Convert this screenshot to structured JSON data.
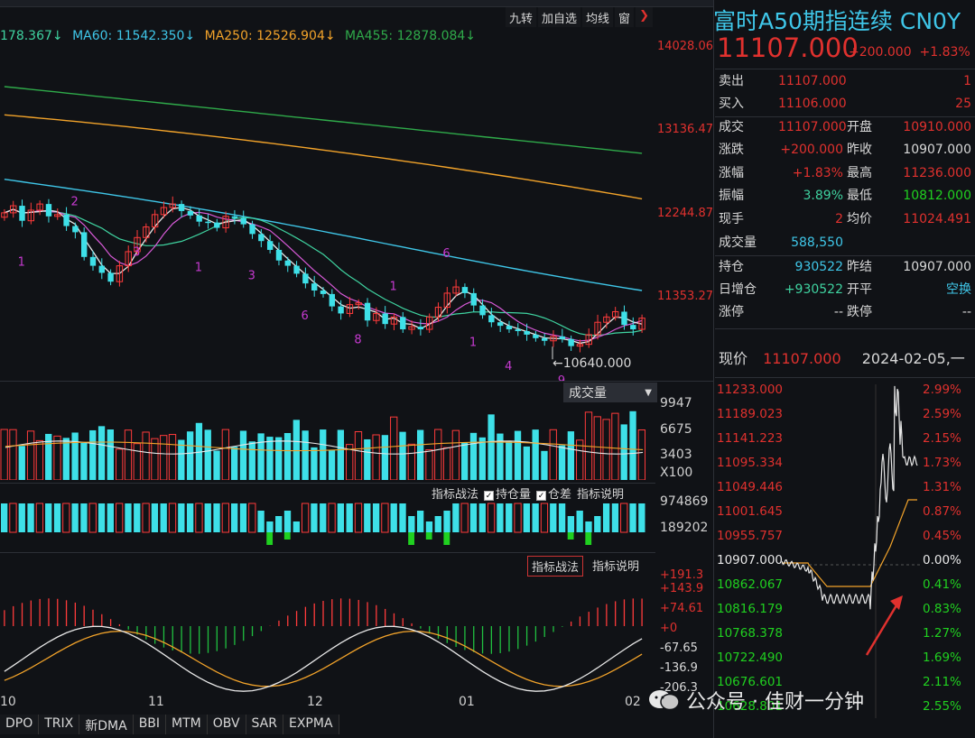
{
  "toolbar": {
    "btn1": "九转",
    "btn2": "加自选",
    "btn3": "均线",
    "btn4": "窗",
    "btn5": "❯"
  },
  "ma_legend": {
    "ma_a": "178.367↓",
    "ma60": "MA60: 11542.350↓",
    "ma250": "MA250: 12526.904↓",
    "ma455": "MA455: 12878.084↓",
    "colors": {
      "ma_a": "#3fd3a0",
      "ma60": "#3fc6e8",
      "ma250": "#f2a32a",
      "ma455": "#2faa4a"
    }
  },
  "price_axis": [
    "14028.06",
    "13136.47",
    "12244.87",
    "11353.27"
  ],
  "low_marker": "←10640.000",
  "volume": {
    "label": "成交量",
    "dropdown": "▼",
    "axis": [
      "9947",
      "6675",
      "3403",
      "X100"
    ]
  },
  "position": {
    "btn_tactic": "指标战法",
    "chk1": "持仓量",
    "chk2": "仓差",
    "btn_help": "指标说明",
    "axis": [
      "974869",
      "189202"
    ]
  },
  "macd": {
    "btn_tactic": "指标战法",
    "btn_help": "指标说明",
    "axis": [
      "+191.3",
      "+143.9",
      "+74.61",
      "+0",
      "-67.65",
      "-136.9",
      "-206.3"
    ]
  },
  "x_labels": [
    "10",
    "11",
    "12",
    "01",
    "02"
  ],
  "bottom_tabs": [
    "DPO",
    "TRIX",
    "新DMA",
    "BBI",
    "MTM",
    "OBV",
    "SAR",
    "EXPMA"
  ],
  "quote": {
    "title": "富时A50期指连续 CN0Y",
    "price": "11107.000",
    "change": "+200.000",
    "change_pct": "+1.83%",
    "rows": [
      {
        "l1": "卖出",
        "v1": "11107.000",
        "l2": "",
        "v2": "1"
      },
      {
        "l1": "买入",
        "v1": "11106.000",
        "l2": "",
        "v2": "25"
      },
      {
        "l1": "成交",
        "v1": "11107.000",
        "l2": "开盘",
        "v2": "10910.000"
      },
      {
        "l1": "涨跌",
        "v1": "+200.000",
        "l2": "昨收",
        "v2": "10907.000"
      },
      {
        "l1": "涨幅",
        "v1": "+1.83%",
        "l2": "最高",
        "v2": "11236.000"
      },
      {
        "l1": "振幅",
        "v1": "3.89%",
        "l2": "最低",
        "v2": "10812.000"
      },
      {
        "l1": "现手",
        "v1": "2",
        "l2": "均价",
        "v2": "11024.491"
      },
      {
        "l1": "成交量",
        "v1": "588,550",
        "l2": "",
        "v2": ""
      },
      {
        "l1": "持仓",
        "v1": "930522",
        "l2": "昨结",
        "v2": "10907.000"
      },
      {
        "l1": "日增仓",
        "v1": "+930522",
        "l2": "开平",
        "v2": "空换"
      },
      {
        "l1": "涨停",
        "v1": "--",
        "l2": "跌停",
        "v2": "--"
      }
    ],
    "cur_label": "现价",
    "cur_price": "11107.000",
    "cur_date": "2024-02-05,一"
  },
  "intraday": {
    "left_axis": [
      "11233.000",
      "11189.023",
      "11141.223",
      "11095.334",
      "11049.446",
      "11001.645",
      "10955.757",
      "10907.000",
      "10862.067",
      "10816.179",
      "10768.378",
      "10722.490",
      "10676.601",
      "10628.801"
    ],
    "right_axis": [
      "2.99%",
      "2.59%",
      "2.15%",
      "1.73%",
      "1.31%",
      "0.87%",
      "0.45%",
      "0.00%",
      "0.41%",
      "0.83%",
      "1.27%",
      "1.69%",
      "2.11%",
      "2.55%"
    ]
  },
  "watermark": "公众号 · 佳财一分钟",
  "chart_data": {
    "type": "candlestick",
    "title": "富时A50期指连续 CN0Y",
    "x_labels": [
      "10",
      "11",
      "12",
      "01",
      "02"
    ],
    "y_ticks": [
      14028.06,
      13136.47,
      12244.87,
      11353.27
    ],
    "ylim": [
      10500,
      14200
    ],
    "low_point": 10640,
    "series": [
      {
        "name": "MA60",
        "last": 11542.35
      },
      {
        "name": "MA250",
        "last": 12526.904
      },
      {
        "name": "MA455",
        "last": 12878.084
      }
    ],
    "closes": [
      12300,
      12380,
      12210,
      12330,
      12400,
      12260,
      12280,
      12150,
      12080,
      11800,
      11700,
      11620,
      11520,
      11700,
      11860,
      12020,
      12140,
      12280,
      12360,
      12400,
      12320,
      12270,
      12200,
      12190,
      12130,
      12260,
      12240,
      12170,
      12060,
      11980,
      11880,
      11760,
      11700,
      11610,
      11500,
      11420,
      11380,
      11240,
      11160,
      11260,
      11280,
      11080,
      11160,
      11040,
      11120,
      10980,
      11010,
      10980,
      11120,
      11230,
      11390,
      11460,
      11390,
      11250,
      11140,
      11060,
      11020,
      10980,
      10960,
      10920,
      10880,
      10850,
      10900,
      10870,
      10790,
      10810,
      10920,
      11060,
      11120,
      11180,
      11030,
      10980,
      11107
    ]
  }
}
